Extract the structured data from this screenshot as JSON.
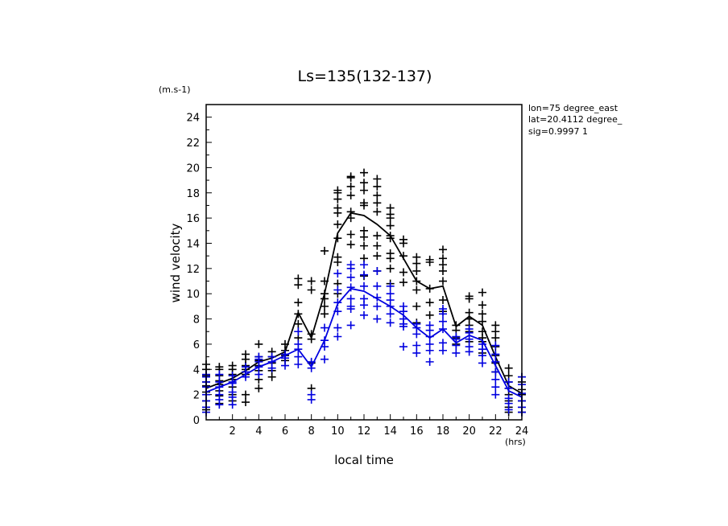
{
  "chart_data": {
    "type": "scatter",
    "title": "Ls=135(132-137)",
    "xlabel": "local time",
    "ylabel": "wind velocity",
    "x_unit": "(hrs)",
    "y_unit": "(m.s-1)",
    "xlim": [
      0,
      24
    ],
    "ylim": [
      0,
      25
    ],
    "x_ticks": [
      "2",
      "4",
      "6",
      "8",
      "10",
      "12",
      "14",
      "16",
      "18",
      "20",
      "22",
      "24"
    ],
    "y_ticks": [
      "0",
      "2",
      "4",
      "6",
      "8",
      "10",
      "12",
      "14",
      "16",
      "18",
      "20",
      "22",
      "24"
    ],
    "grid": false,
    "info_lines": [
      "lon=75 degree_east",
      "lat=20.4112 degree_",
      "sig=0.9997 1"
    ],
    "colors": {
      "series_black": "#000000",
      "series_blue": "#0000e0"
    },
    "series": [
      {
        "color": "#000000",
        "mean_x": [
          0,
          1,
          2,
          3,
          4,
          5,
          6,
          7,
          8,
          9,
          10,
          11,
          12,
          13,
          14,
          15,
          16,
          17,
          18,
          19,
          20,
          21,
          22,
          23,
          24
        ],
        "mean_y": [
          2.5,
          2.9,
          3.3,
          3.9,
          4.6,
          4.9,
          5.4,
          8.5,
          6.5,
          10.0,
          14.8,
          16.4,
          16.2,
          15.5,
          14.6,
          12.8,
          11.0,
          10.4,
          10.6,
          7.4,
          8.2,
          7.5,
          5.0,
          2.7,
          2.1
        ],
        "scatter": [
          [
            0,
            [
              0.8,
              1.5,
              2.2,
              2.7,
              3.0,
              3.5,
              4.0,
              4.4
            ]
          ],
          [
            1,
            [
              1.3,
              1.9,
              2.3,
              2.8,
              3.1,
              3.5,
              4.0,
              4.2
            ]
          ],
          [
            2,
            [
              1.5,
              2.0,
              2.6,
              3.2,
              3.6,
              4.0,
              4.3
            ]
          ],
          [
            3,
            [
              1.4,
              2.0,
              3.6,
              4.0,
              4.3,
              4.8,
              5.2
            ]
          ],
          [
            4,
            [
              2.5,
              3.2,
              3.9,
              4.3,
              4.7,
              5.0,
              6.0
            ]
          ],
          [
            5,
            [
              3.4,
              3.9,
              4.5,
              5.0,
              5.4
            ]
          ],
          [
            6,
            [
              4.7,
              5.1,
              5.5,
              6.0
            ]
          ],
          [
            7,
            [
              6.5,
              7.0,
              7.6,
              8.4,
              9.3,
              10.7,
              11.2
            ]
          ],
          [
            8,
            [
              2.5,
              4.5,
              6.4,
              6.8,
              10.3,
              11.0
            ]
          ],
          [
            9,
            [
              8.4,
              9.0,
              9.6,
              10.0,
              11.0,
              13.4
            ]
          ],
          [
            10,
            [
              10.0,
              10.8,
              12.5,
              12.9,
              14.4,
              15.5,
              16.4,
              16.8,
              17.5,
              18.0,
              18.2
            ]
          ],
          [
            11,
            [
              13.9,
              14.7,
              16.0,
              16.5,
              17.8,
              18.5,
              19.2,
              19.3
            ]
          ],
          [
            12,
            [
              11.4,
              12.8,
              13.8,
              14.5,
              15.0,
              17.0,
              17.2,
              18.2,
              18.8,
              19.6
            ]
          ],
          [
            13,
            [
              11.8,
              13.0,
              13.8,
              14.6,
              16.5,
              17.2,
              17.8,
              18.5,
              19.1
            ]
          ],
          [
            14,
            [
              10.8,
              12.0,
              12.8,
              13.2,
              14.4,
              14.6,
              15.4,
              16.0,
              16.3,
              16.8
            ]
          ],
          [
            15,
            [
              10.9,
              11.7,
              13.0,
              14.0,
              14.3
            ]
          ],
          [
            16,
            [
              7.7,
              9.0,
              10.3,
              11.0,
              11.8,
              12.4,
              12.9
            ]
          ],
          [
            17,
            [
              8.3,
              9.3,
              10.4,
              12.5,
              12.7
            ]
          ],
          [
            18,
            [
              8.6,
              9.5,
              11.0,
              11.8,
              12.3,
              12.8,
              13.5
            ]
          ],
          [
            19,
            [
              6.0,
              6.5,
              7.1,
              7.5
            ]
          ],
          [
            20,
            [
              6.2,
              7.0,
              7.5,
              8.0,
              8.5,
              9.6,
              9.8
            ]
          ],
          [
            21,
            [
              5.3,
              6.2,
              6.5,
              7.0,
              7.8,
              8.4,
              9.1,
              10.1
            ]
          ],
          [
            22,
            [
              3.8,
              4.5,
              5.1,
              5.8,
              6.5,
              7.0,
              7.5
            ]
          ],
          [
            23,
            [
              0.6,
              1.0,
              1.5,
              2.0,
              2.5,
              3.0,
              3.5,
              4.1
            ]
          ],
          [
            24,
            [
              0.6,
              1.0,
              1.5,
              2.0,
              2.4,
              3.0,
              3.4
            ]
          ]
        ]
      },
      {
        "color": "#0000e0",
        "mean_x": [
          0,
          1,
          2,
          3,
          4,
          5,
          6,
          7,
          8,
          9,
          10,
          11,
          12,
          13,
          14,
          15,
          16,
          17,
          18,
          19,
          20,
          21,
          22,
          23,
          24
        ],
        "mean_y": [
          2.2,
          2.6,
          3.0,
          3.6,
          4.2,
          4.6,
          5.1,
          5.6,
          4.2,
          6.3,
          9.2,
          10.4,
          10.2,
          9.6,
          9.0,
          8.3,
          7.3,
          6.5,
          7.2,
          6.1,
          6.7,
          6.3,
          4.3,
          2.3,
          1.8
        ],
        "scatter": [
          [
            0,
            [
              0.6,
              1.0,
              1.5,
              2.0,
              2.6,
              3.0,
              3.4,
              3.6
            ]
          ],
          [
            1,
            [
              1.2,
              1.6,
              2.0,
              2.6,
              3.0,
              3.6
            ]
          ],
          [
            2,
            [
              1.2,
              1.8,
              2.2,
              2.9,
              3.0,
              3.5
            ]
          ],
          [
            3,
            [
              3.4,
              3.8,
              4.2
            ]
          ],
          [
            4,
            [
              3.6,
              4.2,
              4.6,
              4.8,
              5.0
            ]
          ],
          [
            5,
            [
              4.1,
              4.6,
              5.0
            ]
          ],
          [
            6,
            [
              4.3,
              4.9,
              5.2
            ]
          ],
          [
            7,
            [
              4.4,
              5.0,
              5.6,
              6.0,
              7.0
            ]
          ],
          [
            8,
            [
              1.6,
              2.0,
              4.1,
              4.6
            ]
          ],
          [
            9,
            [
              4.8,
              5.8,
              6.3,
              7.3
            ]
          ],
          [
            10,
            [
              6.6,
              7.3,
              8.6,
              9.3,
              10.3,
              11.6
            ]
          ],
          [
            11,
            [
              7.5,
              8.8,
              9.0,
              9.6,
              10.5,
              11.3,
              12.0,
              12.3
            ]
          ],
          [
            12,
            [
              8.3,
              9.1,
              9.6,
              10.6,
              11.5,
              12.3
            ]
          ],
          [
            13,
            [
              8.0,
              9.0,
              9.7,
              10.6,
              11.8
            ]
          ],
          [
            14,
            [
              7.7,
              8.4,
              9.0,
              9.5,
              10.0,
              10.6
            ]
          ],
          [
            15,
            [
              5.8,
              7.4,
              7.6,
              8.0,
              8.6,
              9.0
            ]
          ],
          [
            16,
            [
              5.3,
              5.9,
              6.8,
              7.3,
              7.6
            ]
          ],
          [
            17,
            [
              4.6,
              5.5,
              6.0,
              6.6,
              7.1,
              7.5
            ]
          ],
          [
            18,
            [
              5.5,
              6.1,
              7.2,
              7.8,
              8.4,
              8.8
            ]
          ],
          [
            19,
            [
              5.3,
              5.9,
              6.4,
              6.6
            ]
          ],
          [
            20,
            [
              5.4,
              5.8,
              6.4,
              6.9,
              7.2
            ]
          ],
          [
            21,
            [
              4.5,
              5.1,
              5.6,
              6.0
            ]
          ],
          [
            22,
            [
              2.0,
              2.6,
              3.2,
              3.8,
              4.6,
              5.2,
              5.9
            ]
          ],
          [
            23,
            [
              0.8,
              1.3,
              1.7,
              2.5,
              3.0
            ]
          ],
          [
            24,
            [
              0.6,
              1.0,
              1.5,
              2.1,
              2.8,
              3.4
            ]
          ]
        ]
      }
    ]
  }
}
